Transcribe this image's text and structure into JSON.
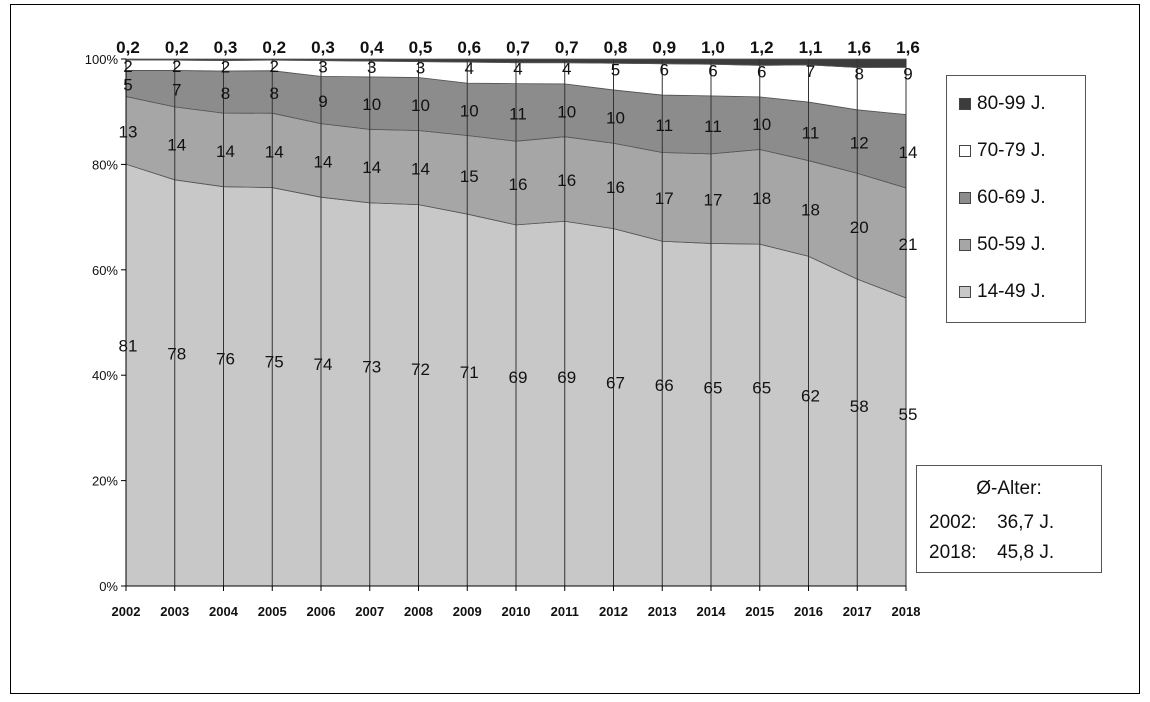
{
  "chart_data": {
    "type": "area",
    "stacked": true,
    "normalized": true,
    "x": [
      "2002",
      "2003",
      "2004",
      "2005",
      "2006",
      "2007",
      "2008",
      "2009",
      "2010",
      "2011",
      "2012",
      "2013",
      "2014",
      "2015",
      "2016",
      "2017",
      "2018"
    ],
    "series": [
      {
        "name": "14-49 J.",
        "color": "#c8c8c8",
        "values": [
          81,
          78,
          76,
          75,
          74,
          73,
          72,
          71,
          69,
          69,
          67,
          66,
          65,
          65,
          62,
          58,
          55
        ],
        "labels": [
          "81",
          "78",
          "76",
          "75",
          "74",
          "73",
          "72",
          "71",
          "69",
          "69",
          "67",
          "66",
          "65",
          "65",
          "62",
          "58",
          "55"
        ]
      },
      {
        "name": "50-59 J.",
        "color": "#a6a6a6",
        "values": [
          13,
          14,
          14,
          14,
          14,
          14,
          14,
          15,
          16,
          16,
          16,
          17,
          17,
          18,
          18,
          20,
          21
        ],
        "labels": [
          "13",
          "14",
          "14",
          "14",
          "14",
          "14",
          "14",
          "15",
          "16",
          "16",
          "16",
          "17",
          "17",
          "18",
          "18",
          "20",
          "21"
        ]
      },
      {
        "name": "60-69 J.",
        "color": "#8c8c8c",
        "values": [
          5,
          7,
          8,
          8,
          9,
          10,
          10,
          10,
          11,
          10,
          10,
          11,
          11,
          10,
          11,
          12,
          14
        ],
        "labels": [
          "5",
          "7",
          "8",
          "8",
          "9",
          "10",
          "10",
          "10",
          "11",
          "10",
          "10",
          "11",
          "11",
          "10",
          "11",
          "12",
          "14"
        ]
      },
      {
        "name": "70-79 J.",
        "color": "#ffffff",
        "values": [
          2,
          2,
          2,
          2,
          3,
          3,
          3,
          4,
          4,
          4,
          5,
          6,
          6,
          6,
          7,
          8,
          9
        ],
        "labels": [
          "2",
          "2",
          "2",
          "2",
          "3",
          "3",
          "3",
          "4",
          "4",
          "4",
          "5",
          "6",
          "6",
          "6",
          "7",
          "8",
          "9"
        ]
      },
      {
        "name": "80-99 J.",
        "color": "#3c3c3c",
        "values": [
          0.2,
          0.2,
          0.3,
          0.2,
          0.3,
          0.4,
          0.5,
          0.6,
          0.7,
          0.7,
          0.8,
          0.9,
          1.0,
          1.2,
          1.1,
          1.6,
          1.6
        ],
        "labels": [
          "0,2",
          "0,2",
          "0,3",
          "0,2",
          "0,3",
          "0,4",
          "0,5",
          "0,6",
          "0,7",
          "0,7",
          "0,8",
          "0,9",
          "1,0",
          "1,2",
          "1,1",
          "1,6",
          "1,6"
        ]
      }
    ],
    "yticks": [
      "0%",
      "20%",
      "40%",
      "60%",
      "80%",
      "100%"
    ],
    "ylim": [
      0,
      100
    ],
    "grid": false,
    "legend_position": "right",
    "legend_order": [
      "80-99 J.",
      "70-79 J.",
      "60-69 J.",
      "50-59 J.",
      "14-49 J."
    ]
  },
  "average_age_box": {
    "title": "Ø-Alter:",
    "rows": [
      {
        "year": "2002:",
        "value": "36,7 J."
      },
      {
        "year": "2018:",
        "value": "45,8 J."
      }
    ]
  }
}
